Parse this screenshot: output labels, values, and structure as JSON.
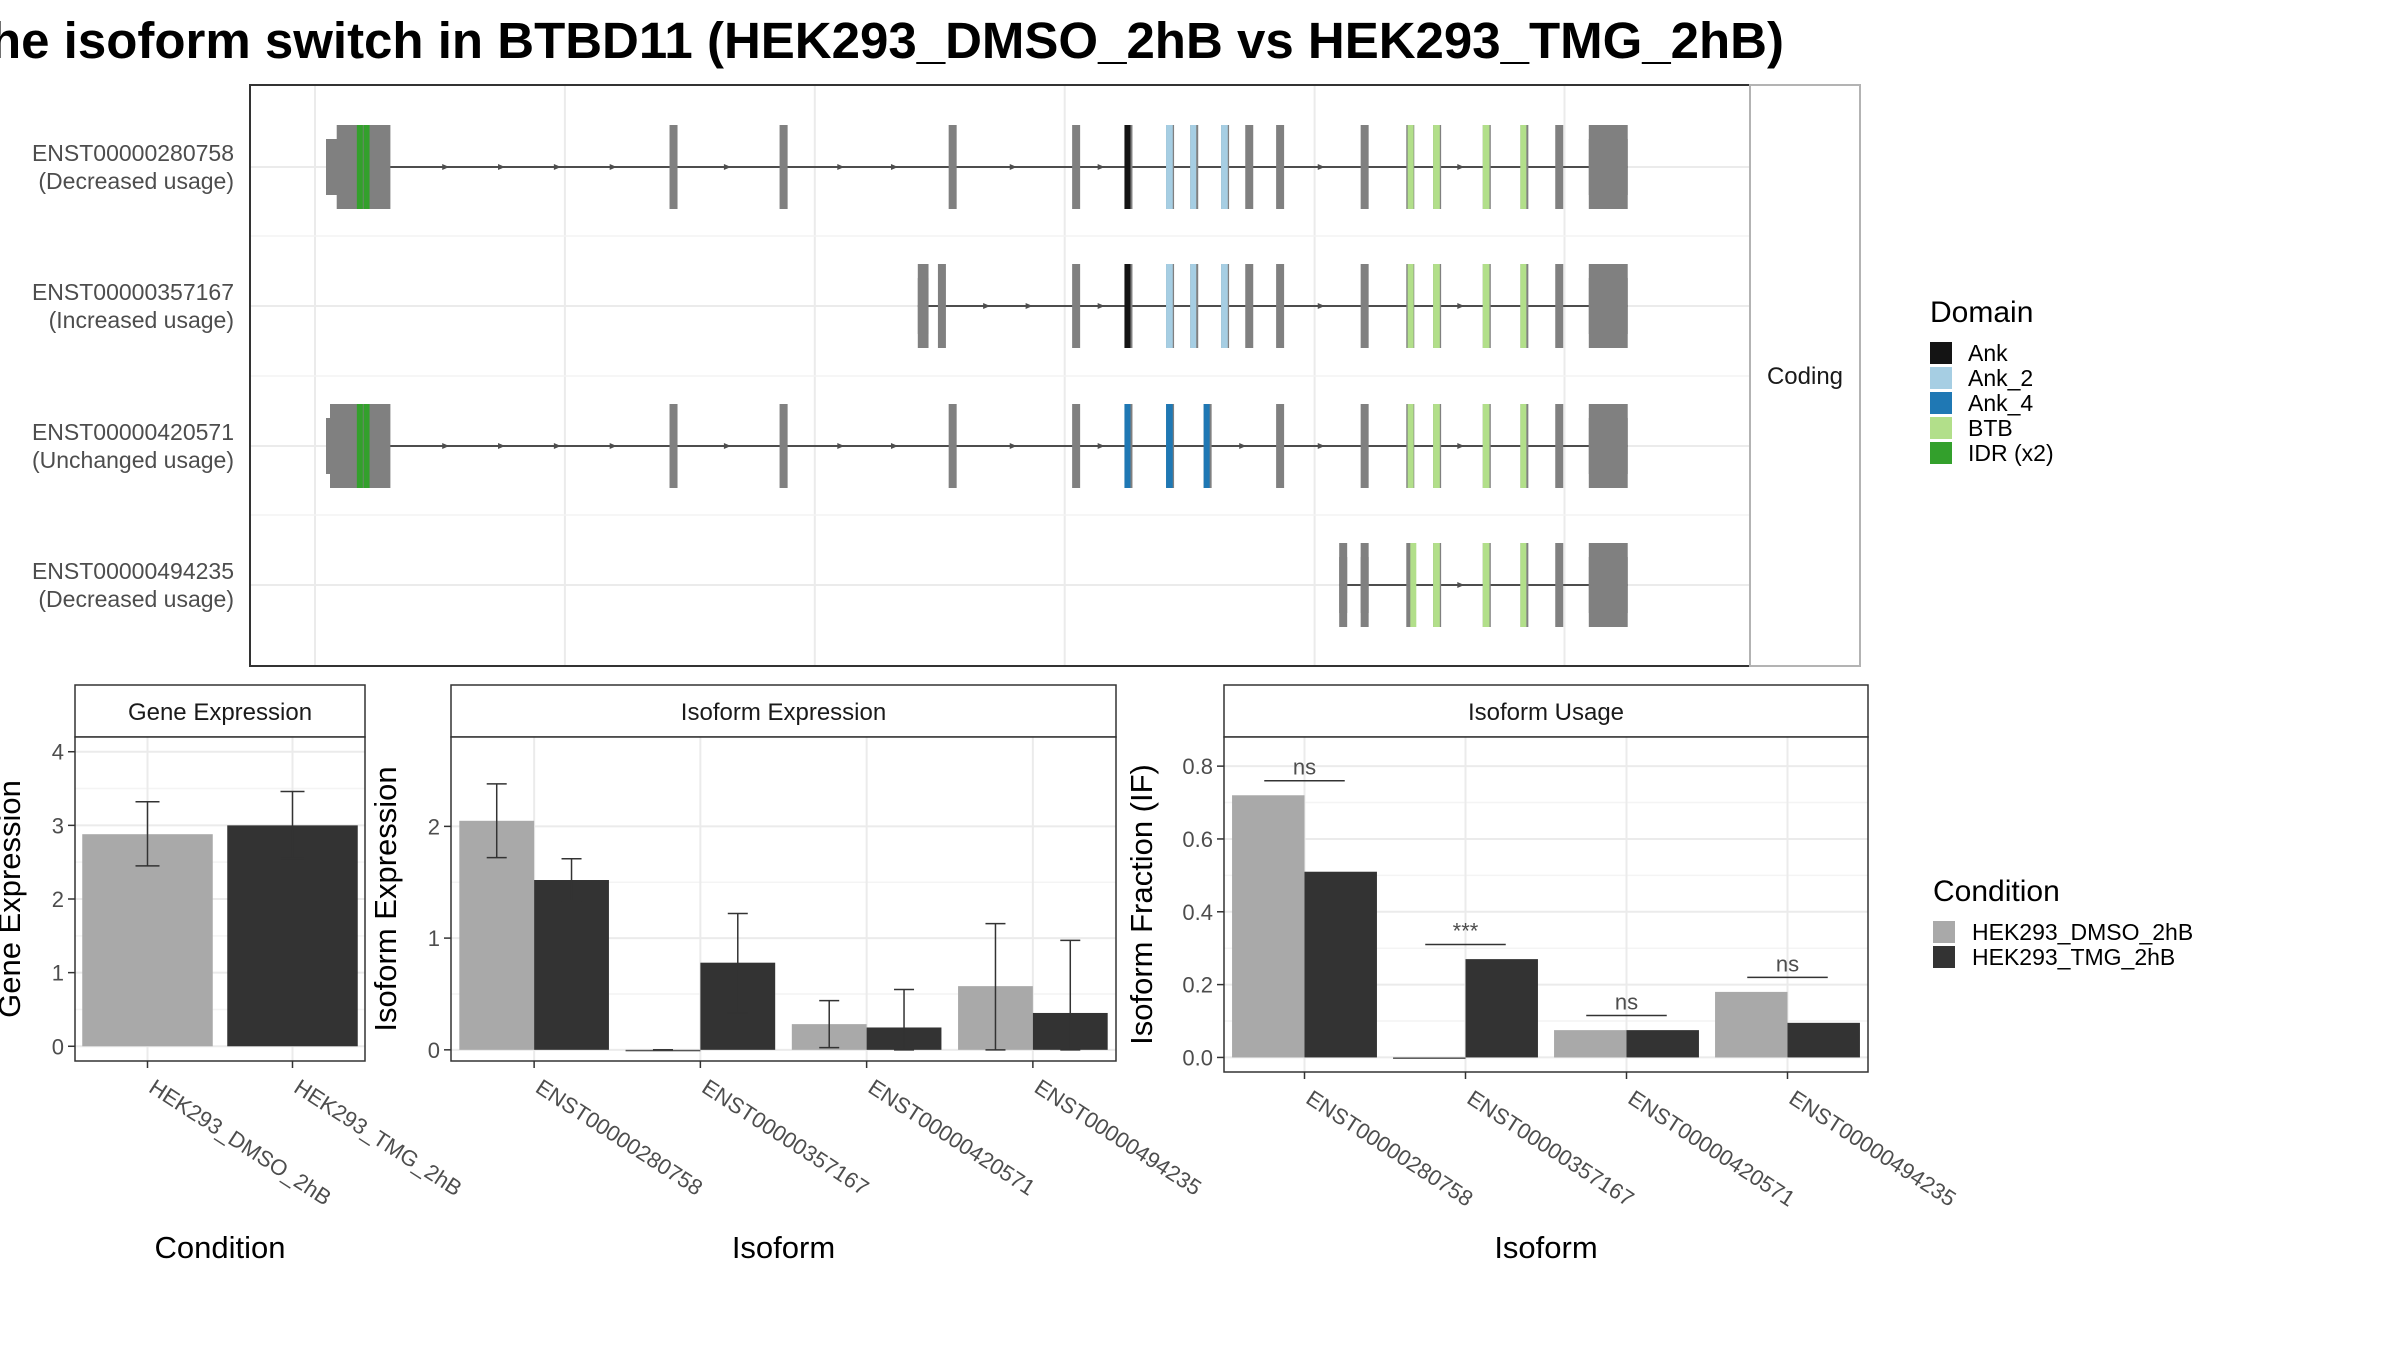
{
  "title": "he isoform switch in BTBD11 (HEK293_DMSO_2hB vs HEK293_TMG_2hB)",
  "colors": {
    "condition_1": "#A9A9A9",
    "condition_2": "#333333",
    "exon": "#808080",
    "intron": "#4d4d4d"
  },
  "chart_data": [
    {
      "type": "gene-structure",
      "strip_label": "Coding",
      "coord_range": [
        0,
        1000
      ],
      "isoforms": [
        {
          "id": "ENST00000280758",
          "usage": "(Decreased usage)",
          "span": [
            5,
            967
          ],
          "exons": [
            [
              5,
              45
            ],
            [
              253,
              258
            ],
            [
              335,
              341
            ],
            [
              461,
              466
            ],
            [
              553,
              558
            ],
            [
              592,
              596
            ],
            [
              623,
              628
            ],
            [
              641,
              645
            ],
            [
              664,
              669
            ],
            [
              682,
              687
            ],
            [
              705,
              710
            ],
            [
              768,
              773
            ],
            [
              802,
              807
            ],
            [
              822,
              827
            ],
            [
              859,
              864
            ],
            [
              887,
              892
            ],
            [
              913,
              918
            ],
            [
              938,
              967
            ]
          ],
          "utrs": [
            [
              0,
              12
            ],
            [
              938,
              967
            ]
          ],
          "domains": [
            {
              "name": "IDR (x2)",
              "segments": [
                [
                  20,
                  24
                ],
                [
                  25,
                  28
                ]
              ]
            },
            {
              "name": "Ank",
              "segments": [
                [
                  592,
                  596
                ]
              ]
            },
            {
              "name": "Ank_2",
              "segments": [
                [
                  623,
                  628
                ],
                [
                  641,
                  645
                ],
                [
                  664,
                  669
                ]
              ]
            },
            {
              "name": "BTB",
              "segments": [
                [
                  803,
                  807
                ],
                [
                  822,
                  827
                ],
                [
                  859,
                  864
                ],
                [
                  887,
                  891
                ]
              ]
            }
          ]
        },
        {
          "id": "ENST00000357167",
          "usage": "(Increased usage)",
          "span": [
            438,
            967
          ],
          "exons": [
            [
              438,
              446
            ],
            [
              453,
              458
            ],
            [
              553,
              558
            ],
            [
              592,
              596
            ],
            [
              623,
              628
            ],
            [
              641,
              645
            ],
            [
              664,
              669
            ],
            [
              682,
              687
            ],
            [
              705,
              710
            ],
            [
              768,
              773
            ],
            [
              802,
              807
            ],
            [
              822,
              827
            ],
            [
              859,
              864
            ],
            [
              887,
              892
            ],
            [
              913,
              918
            ],
            [
              938,
              967
            ]
          ],
          "utrs": [
            [
              438,
              446
            ],
            [
              938,
              967
            ]
          ],
          "domains": [
            {
              "name": "Ank",
              "segments": [
                [
                  592,
                  596
                ]
              ]
            },
            {
              "name": "Ank_2",
              "segments": [
                [
                  623,
                  628
                ],
                [
                  641,
                  645
                ],
                [
                  664,
                  669
                ]
              ]
            },
            {
              "name": "BTB",
              "segments": [
                [
                  803,
                  807
                ],
                [
                  822,
                  827
                ],
                [
                  859,
                  864
                ],
                [
                  887,
                  891
                ]
              ]
            }
          ]
        },
        {
          "id": "ENST00000420571",
          "usage": "(Unchanged usage)",
          "span": [
            0,
            967
          ],
          "exons": [
            [
              0,
              45
            ],
            [
              253,
              258
            ],
            [
              335,
              341
            ],
            [
              461,
              466
            ],
            [
              553,
              558
            ],
            [
              592,
              596
            ],
            [
              623,
              628
            ],
            [
              651,
              656
            ],
            [
              705,
              710
            ],
            [
              768,
              773
            ],
            [
              802,
              807
            ],
            [
              822,
              827
            ],
            [
              859,
              864
            ],
            [
              887,
              892
            ],
            [
              913,
              918
            ],
            [
              938,
              967
            ]
          ],
          "utrs": [
            [
              0,
              12
            ],
            [
              938,
              967
            ]
          ],
          "domains": [
            {
              "name": "IDR (x2)",
              "segments": [
                [
                  20,
                  24
                ],
                [
                  25,
                  28
                ]
              ]
            },
            {
              "name": "Ank_4",
              "segments": [
                [
                  592,
                  596
                ],
                [
                  623,
                  628
                ],
                [
                  651,
                  653
                ]
              ]
            },
            {
              "name": "BTB",
              "segments": [
                [
                  803,
                  807
                ],
                [
                  822,
                  827
                ],
                [
                  859,
                  864
                ],
                [
                  887,
                  891
                ]
              ]
            }
          ]
        },
        {
          "id": "ENST00000494235",
          "usage": "(Decreased usage)",
          "span": [
            752,
            967
          ],
          "exons": [
            [
              752,
              757
            ],
            [
              768,
              773
            ],
            [
              802,
              807
            ],
            [
              822,
              827
            ],
            [
              859,
              864
            ],
            [
              887,
              892
            ],
            [
              913,
              918
            ],
            [
              938,
              967
            ]
          ],
          "utrs": [
            [
              752,
              757
            ],
            [
              768,
              773
            ],
            [
              938,
              967
            ]
          ],
          "domains": [
            {
              "name": "BTB",
              "segments": [
                [
                  805,
                  808
                ],
                [
                  822,
                  827
                ],
                [
                  859,
                  864
                ],
                [
                  887,
                  891
                ]
              ]
            }
          ]
        }
      ],
      "legend": {
        "title": "Domain",
        "items": [
          {
            "name": "Ank",
            "color": "#141414"
          },
          {
            "name": "Ank_2",
            "color": "#A6CEE3"
          },
          {
            "name": "Ank_4",
            "color": "#1F78B4"
          },
          {
            "name": "BTB",
            "color": "#B2DF8A"
          },
          {
            "name": "IDR (x2)",
            "color": "#33A02C"
          }
        ]
      }
    },
    {
      "type": "bar",
      "strip_label": "Gene Expression",
      "xlabel": "Condition",
      "ylabel": "Gene Expression",
      "ylim": [
        -0.2,
        4.2
      ],
      "yticks": [
        0,
        1,
        2,
        3,
        4
      ],
      "categories": [
        "HEK293_DMSO_2hB",
        "HEK293_TMG_2hB"
      ],
      "values": [
        2.88,
        3.0
      ],
      "errors": [
        [
          2.45,
          3.32
        ],
        [
          2.55,
          3.46
        ]
      ]
    },
    {
      "type": "bar",
      "strip_label": "Isoform Expression",
      "xlabel": "Isoform",
      "ylabel": "Isoform Expression",
      "ylim": [
        -0.1,
        2.8
      ],
      "yticks": [
        0,
        1,
        2
      ],
      "categories": [
        "ENST00000280758",
        "ENST00000357167",
        "ENST00000420571",
        "ENST00000494235"
      ],
      "series": [
        {
          "name": "HEK293_DMSO_2hB",
          "values": [
            2.05,
            0.0,
            0.23,
            0.57
          ],
          "errors": [
            [
              1.72,
              2.38
            ],
            [
              0.0,
              0.0
            ],
            [
              0.02,
              0.44
            ],
            [
              0.0,
              1.13
            ]
          ]
        },
        {
          "name": "HEK293_TMG_2hB",
          "values": [
            1.52,
            0.78,
            0.2,
            0.33
          ],
          "errors": [
            [
              1.33,
              1.71
            ],
            [
              0.33,
              1.22
            ],
            [
              0.0,
              0.54
            ],
            [
              0.0,
              0.98
            ]
          ]
        }
      ]
    },
    {
      "type": "bar",
      "strip_label": "Isoform Usage",
      "xlabel": "Isoform",
      "ylabel": "Isoform Fraction (IF)",
      "ylim": [
        -0.04,
        0.88
      ],
      "yticks": [
        0.0,
        0.2,
        0.4,
        0.6,
        0.8
      ],
      "ytick_labels": [
        "0.0",
        "0.2",
        "0.4",
        "0.6",
        "0.8"
      ],
      "categories": [
        "ENST00000280758",
        "ENST00000357167",
        "ENST00000420571",
        "ENST00000494235"
      ],
      "series": [
        {
          "name": "HEK293_DMSO_2hB",
          "values": [
            0.72,
            0.0,
            0.075,
            0.18
          ]
        },
        {
          "name": "HEK293_TMG_2hB",
          "values": [
            0.51,
            0.27,
            0.075,
            0.095
          ]
        }
      ],
      "significance": [
        {
          "label": "ns",
          "y": 0.76
        },
        {
          "label": "***",
          "y": 0.31
        },
        {
          "label": "ns",
          "y": 0.115
        },
        {
          "label": "ns",
          "y": 0.22
        }
      ],
      "legend": {
        "title": "Condition",
        "items": [
          {
            "name": "HEK293_DMSO_2hB",
            "color": "#A9A9A9"
          },
          {
            "name": "HEK293_TMG_2hB",
            "color": "#333333"
          }
        ]
      }
    }
  ]
}
